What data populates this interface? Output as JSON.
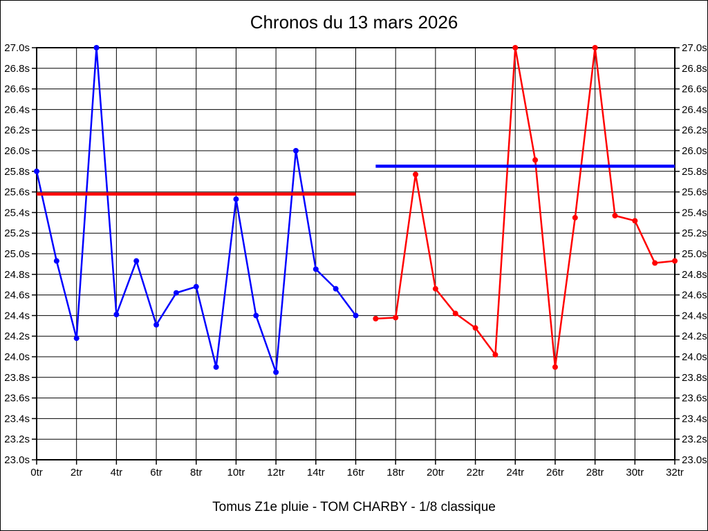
{
  "chart_data": {
    "type": "line",
    "title": "Chronos du 13 mars 2026",
    "subtitle": "Tomus Z1e pluie - TOM CHARBY - 1/8 classique",
    "x_unit": "tr",
    "y_unit": "s",
    "xlim": [
      0,
      32
    ],
    "ylim": [
      23.0,
      27.0
    ],
    "x_tick_step": 2,
    "y_tick_step": 0.2,
    "grid": true,
    "axis_color": "#000000",
    "background_color": "#ffffff",
    "series": [
      {
        "name": "chronos-bleus",
        "color": "#0000ff",
        "x_start": 0,
        "values": [
          25.8,
          24.93,
          24.18,
          27.0,
          24.41,
          24.93,
          24.31,
          24.62,
          24.68,
          23.9,
          25.53,
          24.4,
          23.85,
          26.0,
          24.85,
          24.66,
          24.4
        ]
      },
      {
        "name": "chronos-rouges",
        "color": "#ff0000",
        "x_start": 17,
        "values": [
          24.37,
          24.38,
          25.77,
          24.66,
          24.42,
          24.28,
          24.02,
          27.0,
          25.91,
          23.9,
          25.35,
          27.0,
          25.37,
          25.32,
          24.91,
          24.93
        ]
      }
    ],
    "reference_lines": [
      {
        "name": "moyenne-rouge",
        "color": "#ff0000",
        "value": 25.58,
        "x_start": 0,
        "x_end": 16
      },
      {
        "name": "moyenne-bleue",
        "color": "#0000ff",
        "value": 25.85,
        "x_start": 17,
        "x_end": 32
      }
    ]
  }
}
